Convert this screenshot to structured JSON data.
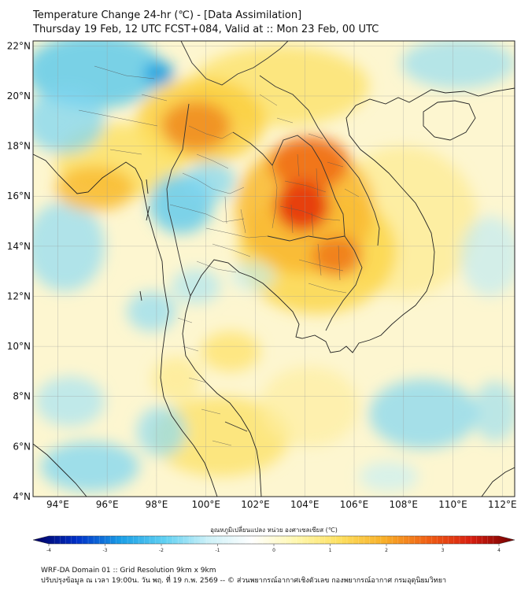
{
  "title": {
    "line1": "Temperature Change 24-hr (℃) - [Data Assimilation]",
    "line2": "Thursday 19 Feb, 12 UTC FCST+084, Valid at :: Mon 23 Feb, 00 UTC"
  },
  "map": {
    "lat_range": [
      4,
      22.2
    ],
    "lon_range": [
      93,
      112.5
    ],
    "lat_ticks": [
      {
        "value": 22,
        "label": "22°N"
      },
      {
        "value": 20,
        "label": "20°N"
      },
      {
        "value": 18,
        "label": "18°N"
      },
      {
        "value": 16,
        "label": "16°N"
      },
      {
        "value": 14,
        "label": "14°N"
      },
      {
        "value": 12,
        "label": "12°N"
      },
      {
        "value": 10,
        "label": "10°N"
      },
      {
        "value": 8,
        "label": "8°N"
      },
      {
        "value": 6,
        "label": "6°N"
      },
      {
        "value": 4,
        "label": "4°N"
      }
    ],
    "lon_ticks": [
      {
        "value": 94,
        "label": "94°E"
      },
      {
        "value": 96,
        "label": "96°E"
      },
      {
        "value": 98,
        "label": "98°E"
      },
      {
        "value": 100,
        "label": "100°E"
      },
      {
        "value": 102,
        "label": "102°E"
      },
      {
        "value": 104,
        "label": "104°E"
      },
      {
        "value": 106,
        "label": "106°E"
      },
      {
        "value": 108,
        "label": "108°E"
      },
      {
        "value": 110,
        "label": "110°E"
      },
      {
        "value": 112,
        "label": "112°E"
      }
    ],
    "field_blobs": [
      {
        "lon": 103.9,
        "lat": 15.6,
        "rx": 1.1,
        "ry": 1.0,
        "color": "#e63a10",
        "opacity": 0.95
      },
      {
        "lon": 104.2,
        "lat": 17.3,
        "rx": 1.6,
        "ry": 1.1,
        "color": "#f06a14",
        "opacity": 0.85
      },
      {
        "lon": 105.3,
        "lat": 13.6,
        "rx": 1.0,
        "ry": 0.8,
        "color": "#f07818",
        "opacity": 0.85
      },
      {
        "lon": 104.0,
        "lat": 15.5,
        "rx": 2.8,
        "ry": 2.6,
        "color": "#f9b830",
        "opacity": 0.85
      },
      {
        "lon": 104.5,
        "lat": 13.8,
        "rx": 3.2,
        "ry": 2.5,
        "color": "#fbd545",
        "opacity": 0.8
      },
      {
        "lon": 99.6,
        "lat": 18.8,
        "rx": 1.4,
        "ry": 1.0,
        "color": "#f08a1c",
        "opacity": 0.85
      },
      {
        "lon": 99.8,
        "lat": 19.0,
        "rx": 2.6,
        "ry": 1.7,
        "color": "#fbcf40",
        "opacity": 0.85
      },
      {
        "lon": 103.0,
        "lat": 20.4,
        "rx": 3.6,
        "ry": 1.6,
        "color": "#fde26a",
        "opacity": 0.8
      },
      {
        "lon": 95.5,
        "lat": 16.3,
        "rx": 1.6,
        "ry": 0.9,
        "color": "#f9bc35",
        "opacity": 0.85
      },
      {
        "lon": 96.5,
        "lat": 17.4,
        "rx": 2.6,
        "ry": 1.5,
        "color": "#fde060",
        "opacity": 0.8
      },
      {
        "lon": 108.0,
        "lat": 15.0,
        "rx": 3.0,
        "ry": 3.0,
        "color": "#fde98a",
        "opacity": 0.65
      },
      {
        "lon": 100.6,
        "lat": 6.4,
        "rx": 2.8,
        "ry": 1.6,
        "color": "#fde26a",
        "opacity": 0.8
      },
      {
        "lon": 101.0,
        "lat": 9.8,
        "rx": 1.2,
        "ry": 0.8,
        "color": "#fde26a",
        "opacity": 0.75
      },
      {
        "lon": 98.8,
        "lat": 8.7,
        "rx": 1.0,
        "ry": 0.9,
        "color": "#fde98a",
        "opacity": 0.7
      },
      {
        "lon": 104.2,
        "lat": 7.6,
        "rx": 2.0,
        "ry": 1.6,
        "color": "#fdeea0",
        "opacity": 0.7
      },
      {
        "lon": 95.5,
        "lat": 21.0,
        "rx": 2.8,
        "ry": 1.5,
        "color": "#58c8ec",
        "opacity": 0.8
      },
      {
        "lon": 98.1,
        "lat": 20.9,
        "rx": 0.6,
        "ry": 0.5,
        "color": "#1f9ee0",
        "opacity": 0.9
      },
      {
        "lon": 94.3,
        "lat": 19.0,
        "rx": 1.6,
        "ry": 1.3,
        "color": "#7fd6f2",
        "opacity": 0.75
      },
      {
        "lon": 94.3,
        "lat": 14.0,
        "rx": 1.6,
        "ry": 1.8,
        "color": "#8fdcf4",
        "opacity": 0.7
      },
      {
        "lon": 99.0,
        "lat": 15.7,
        "rx": 1.3,
        "ry": 1.2,
        "color": "#5cc9ee",
        "opacity": 0.8
      },
      {
        "lon": 100.2,
        "lat": 16.6,
        "rx": 1.0,
        "ry": 0.8,
        "color": "#7fd6f2",
        "opacity": 0.7
      },
      {
        "lon": 97.8,
        "lat": 11.4,
        "rx": 1.0,
        "ry": 0.8,
        "color": "#8fdcf4",
        "opacity": 0.7
      },
      {
        "lon": 99.6,
        "lat": 12.4,
        "rx": 1.0,
        "ry": 0.7,
        "color": "#9fe2f6",
        "opacity": 0.6
      },
      {
        "lon": 95.3,
        "lat": 5.2,
        "rx": 2.0,
        "ry": 1.0,
        "color": "#7fd6f2",
        "opacity": 0.75
      },
      {
        "lon": 94.5,
        "lat": 7.8,
        "rx": 1.4,
        "ry": 1.0,
        "color": "#9fe2f6",
        "opacity": 0.65
      },
      {
        "lon": 98.2,
        "lat": 6.6,
        "rx": 1.0,
        "ry": 1.0,
        "color": "#8fdcf4",
        "opacity": 0.7
      },
      {
        "lon": 108.8,
        "lat": 7.3,
        "rx": 2.2,
        "ry": 1.4,
        "color": "#7fd6f2",
        "opacity": 0.7
      },
      {
        "lon": 111.7,
        "lat": 7.4,
        "rx": 0.9,
        "ry": 1.2,
        "color": "#8fdcf4",
        "opacity": 0.6
      },
      {
        "lon": 110.2,
        "lat": 21.3,
        "rx": 2.3,
        "ry": 1.0,
        "color": "#8fdcf4",
        "opacity": 0.65
      },
      {
        "lon": 111.5,
        "lat": 13.6,
        "rx": 1.2,
        "ry": 1.6,
        "color": "#b8eaf8",
        "opacity": 0.6
      },
      {
        "lon": 101.9,
        "lat": 12.8,
        "rx": 0.9,
        "ry": 0.6,
        "color": "#bfeefa",
        "opacity": 0.6
      },
      {
        "lon": 107.4,
        "lat": 4.8,
        "rx": 1.2,
        "ry": 0.6,
        "color": "#bfeefa",
        "opacity": 0.6
      }
    ]
  },
  "colorbar": {
    "title": "อุณหภูมิเปลี่ยนแปลง หน่วย องศาเซลเซียส (℃)",
    "min": -4,
    "max": 4,
    "ticks": [
      {
        "value": -4,
        "label": "-4"
      },
      {
        "value": -3,
        "label": "-3"
      },
      {
        "value": -2,
        "label": "-2"
      },
      {
        "value": -1,
        "label": "-1"
      },
      {
        "value": 0,
        "label": "0"
      },
      {
        "value": 1,
        "label": "1"
      },
      {
        "value": 2,
        "label": "2"
      },
      {
        "value": 3,
        "label": "3"
      },
      {
        "value": 4,
        "label": "4"
      }
    ],
    "stops": [
      "#000060",
      "#0030c8",
      "#1a9ee6",
      "#5fd0f2",
      "#cdf1f8",
      "#ffffff",
      "#fff8b0",
      "#fde060",
      "#f8b028",
      "#f06014",
      "#d81e10",
      "#700000"
    ]
  },
  "footer": {
    "line1": "WRF-DA Domain 01 :: Grid Resolution 9km x 9km",
    "line2": "ปรับปรุงข้อมูล ณ เวลา 19:00น. วัน พฤ. ที่ 19 ก.พ. 2569 -- © ส่วนพยากรณ์อากาศเชิงตัวเลข กองพยากรณ์อากาศ กรมอุตุนิยมวิทยา"
  }
}
